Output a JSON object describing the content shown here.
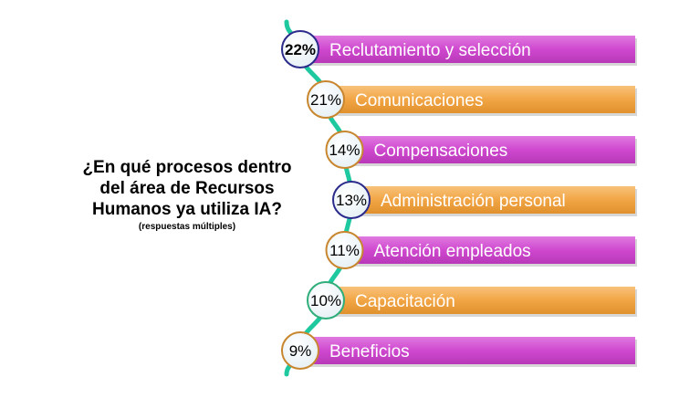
{
  "question": {
    "line1": "¿En qué procesos dentro",
    "line2": "del área de Recursos",
    "line3": "Humanos ya utiliza IA?",
    "note": "(respuestas múltiples)"
  },
  "chart_data": {
    "type": "bar",
    "unit": "%",
    "categories": [
      "Reclutamiento y selección",
      "Comunicaciones",
      "Compensaciones",
      "Administración personal",
      "Atención empleados",
      "Capacitación",
      "Beneficios"
    ],
    "values": [
      22,
      21,
      14,
      13,
      11,
      10,
      9
    ],
    "value_labels": [
      "22%",
      "21%",
      "14%",
      "13%",
      "11%",
      "10%",
      "9%"
    ],
    "bar_colors": [
      "#d24ed2",
      "#f5a94a",
      "#d24ed2",
      "#f5a94a",
      "#d24ed2",
      "#f5a94a",
      "#d24ed2"
    ],
    "ring_colors": [
      "#2b2b8c",
      "#c8862e",
      "#c8862e",
      "#2b2b8c",
      "#c8862e",
      "#2fae7a",
      "#c8862e"
    ],
    "spine_color": "#1fc9a0"
  }
}
